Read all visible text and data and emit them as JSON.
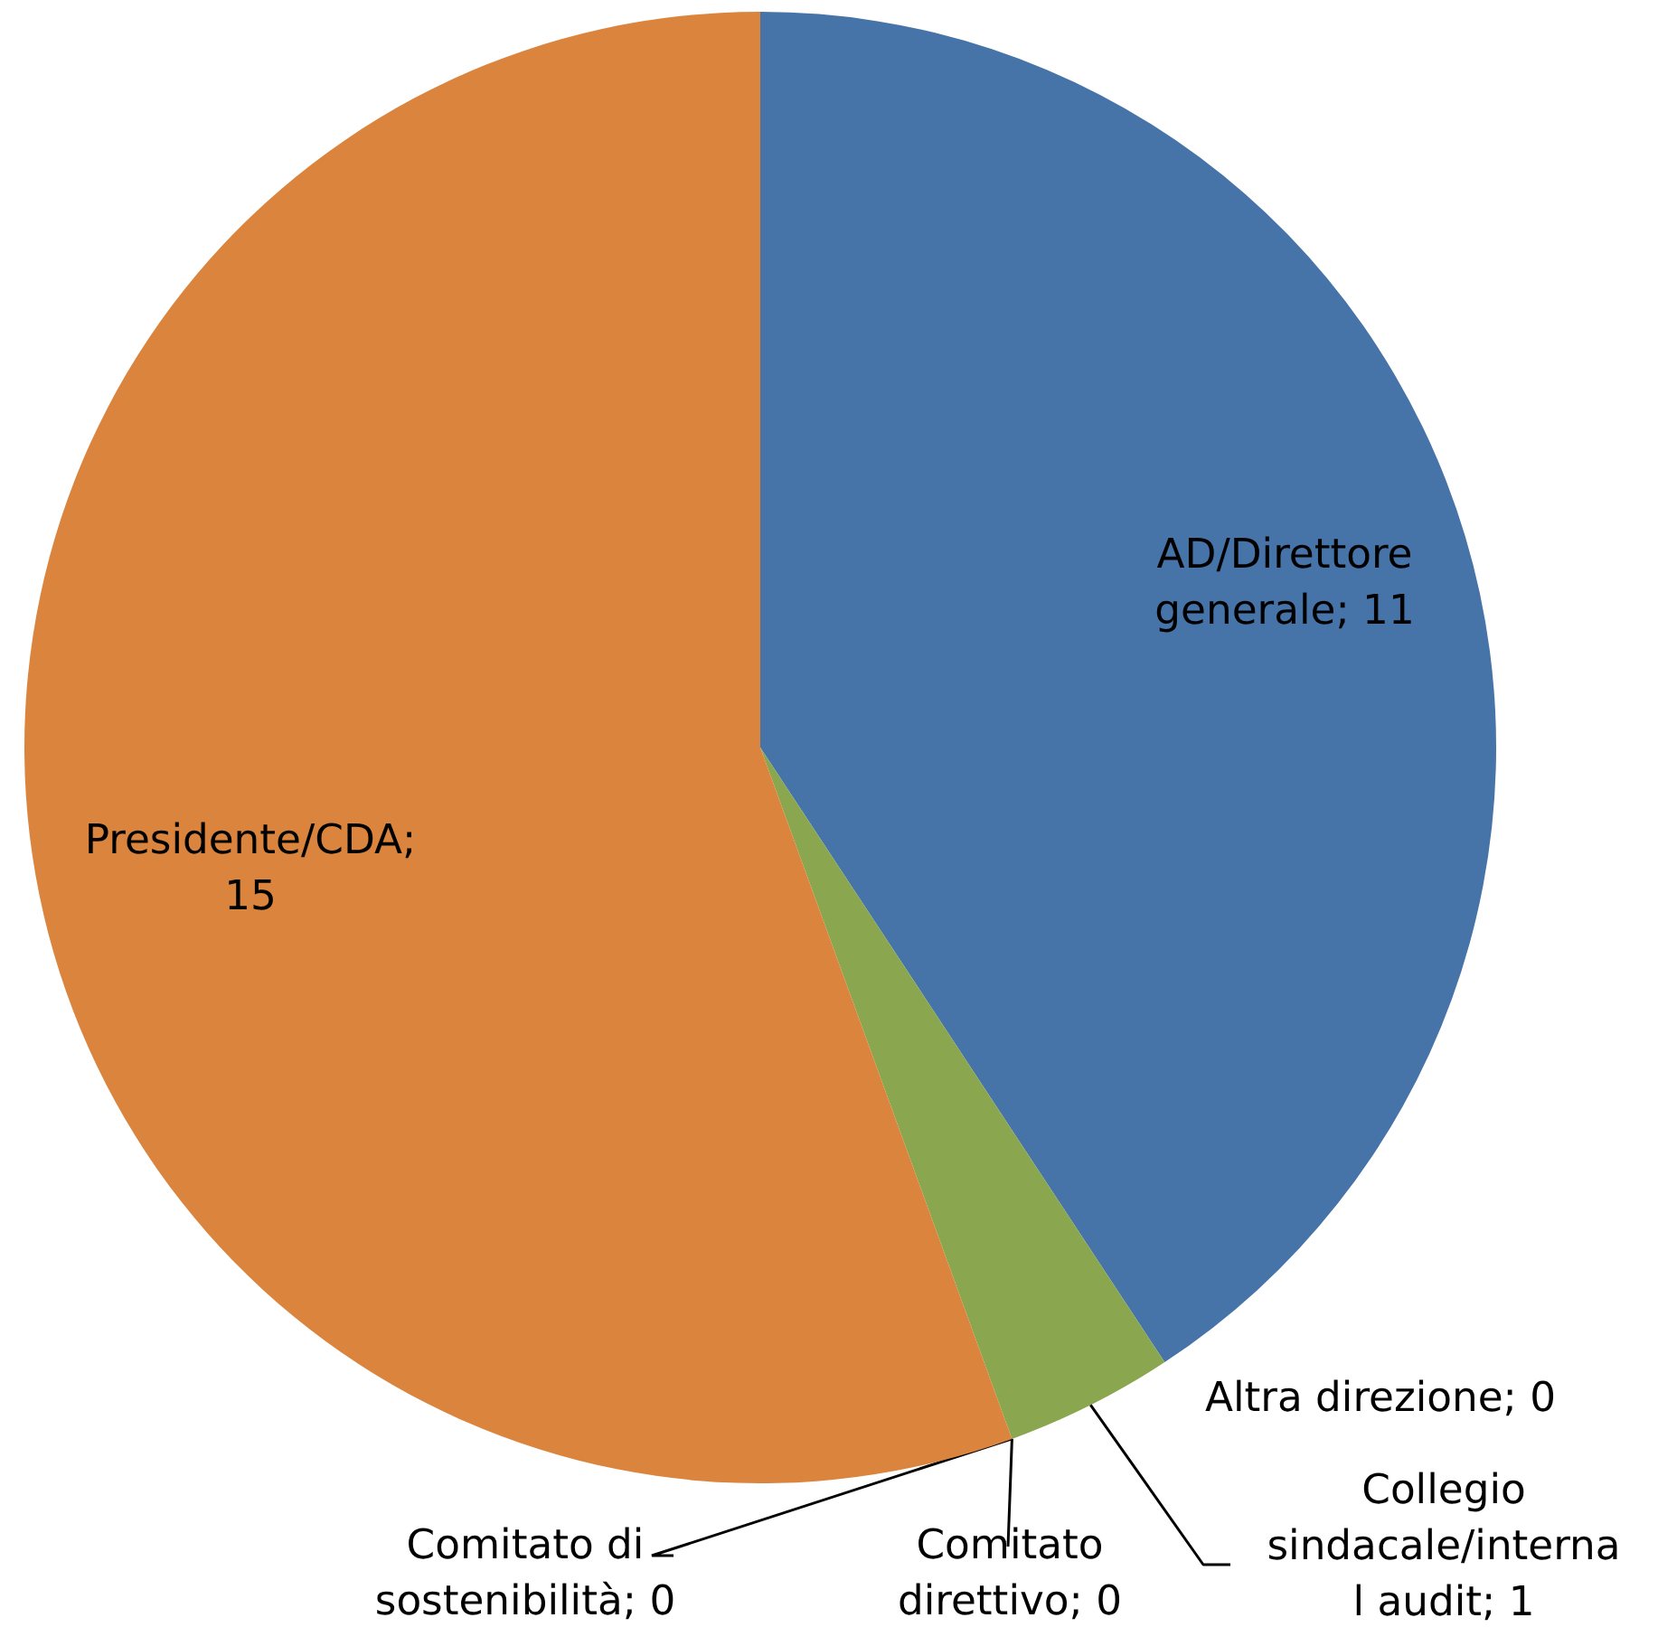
{
  "chart_data": {
    "type": "pie",
    "categories": [
      "AD/Direttore generale",
      "Altra direzione",
      "Collegio sindacale/internal audit",
      "Comitato direttivo",
      "Comitato di sostenibilità",
      "Presidente/CDA"
    ],
    "values": [
      11,
      0,
      1,
      0,
      0,
      15
    ],
    "colors": [
      "#4673a8",
      "#4673a8",
      "#8aa64f",
      "#8aa64f",
      "#db843d",
      "#db843d"
    ],
    "value_labels": [
      "; 11",
      "; 0",
      "; 1",
      "; 0",
      "; 0",
      "; 15"
    ]
  }
}
